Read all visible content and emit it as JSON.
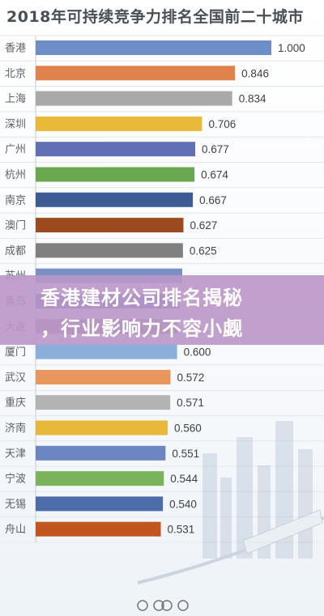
{
  "chart_data": {
    "type": "bar",
    "orientation": "horizontal",
    "title": "2018年可持续竞争力排名全国前二十城市",
    "categories": [
      "香港",
      "北京",
      "上海",
      "深圳",
      "广州",
      "杭州",
      "南京",
      "澳门",
      "成都",
      "苏州",
      "青岛",
      "大连",
      "厦门",
      "武汉",
      "重庆",
      "济南",
      "天津",
      "宁波",
      "无锡",
      "舟山"
    ],
    "values": [
      1.0,
      0.846,
      0.834,
      0.706,
      0.677,
      0.674,
      0.667,
      0.627,
      0.625,
      0.622,
      0.61,
      0.601,
      0.6,
      0.572,
      0.571,
      0.56,
      0.551,
      0.544,
      0.54,
      0.531
    ],
    "value_labels": [
      "1.000",
      "0.846",
      "0.834",
      "0.706",
      "0.677",
      "0.674",
      "0.667",
      "0.627",
      "0.625",
      "",
      "",
      "",
      "0.600",
      "0.572",
      "0.571",
      "0.560",
      "0.551",
      "0.544",
      "0.540",
      "0.531"
    ],
    "colors": [
      "#6d8ec7",
      "#e0824c",
      "#a9a9a9",
      "#e9b93a",
      "#5f6fb3",
      "#6aa84f",
      "#3e5c93",
      "#9c4a20",
      "#808080",
      "#7a8fc4",
      "#4f6fb3",
      "#8a8a8a",
      "#8caedb",
      "#e8955e",
      "#b3b3b3",
      "#e8b83a",
      "#6b85c2",
      "#7bb35a",
      "#4d6ba8",
      "#c0551f"
    ],
    "xlim": [
      0,
      1
    ],
    "grid": false,
    "legend": "none"
  },
  "banner": {
    "line1": "香港建材公司排名揭秘",
    "line2": "，行业影响力不容小觑"
  }
}
